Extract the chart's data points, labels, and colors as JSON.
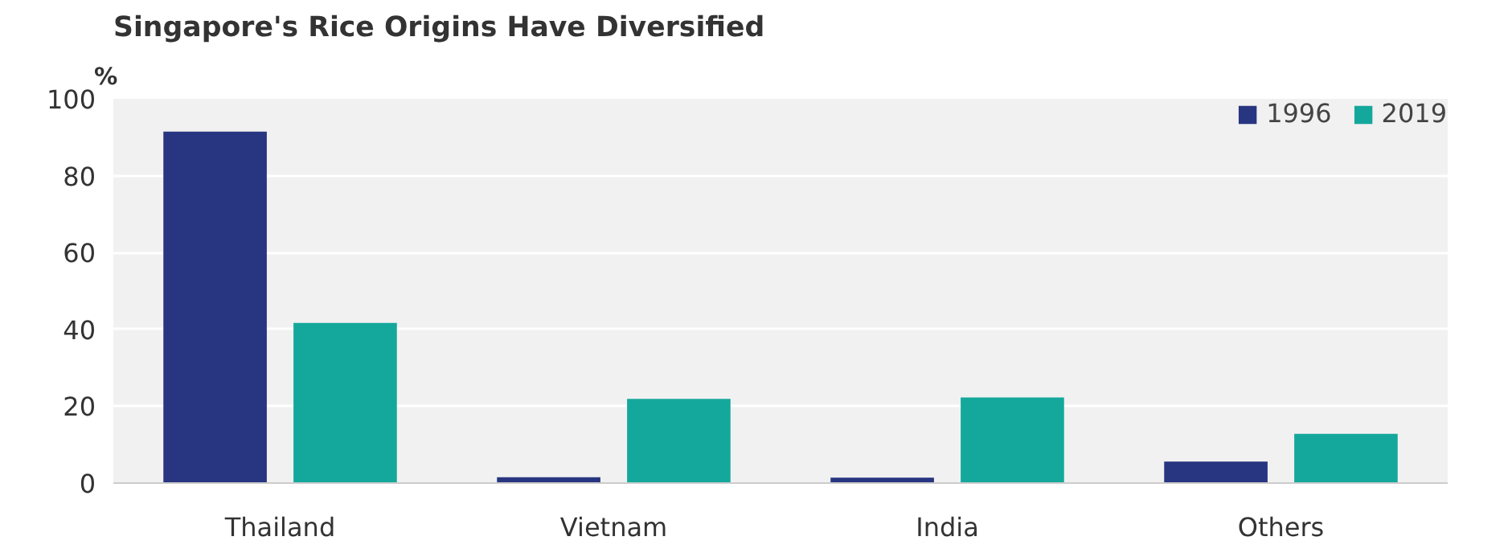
{
  "chart_data": {
    "type": "bar",
    "title": "Singapore's Rice Origins Have Diversified",
    "ylabel": "%",
    "categories": [
      "Thailand",
      "Vietnam",
      "India",
      "Others"
    ],
    "series": [
      {
        "name": "1996",
        "color": "#283580",
        "values": [
          91.5,
          1.5,
          1.4,
          5.6
        ]
      },
      {
        "name": "2019",
        "color": "#14a89c",
        "values": [
          41.7,
          21.9,
          22.3,
          12.8
        ]
      }
    ],
    "ylim": [
      0,
      100
    ],
    "yticks": [
      0,
      20,
      40,
      60,
      80,
      100
    ],
    "grid": "y",
    "legend": "top right"
  }
}
